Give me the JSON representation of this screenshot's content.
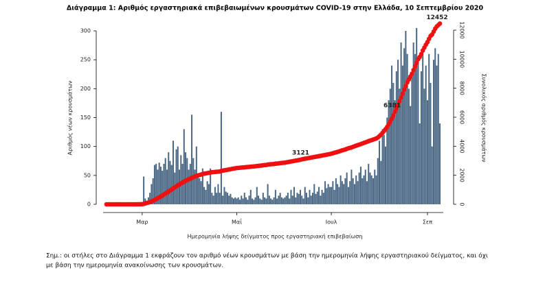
{
  "chart_data": {
    "type": "bar",
    "title": "Διάγραμμα 1: Αριθμός εργαστηριακά επιβεβαιωμένων κρουσμάτων COVID-19 στην Ελλάδα, 10 Σεπτεμβρίου 2020",
    "x_label": "Ημερομηνία λήψης δείγματος προς εργαστηριακή επιβεβαίωση",
    "y_label": "Αριθμός νέων κρουσμάτων",
    "y2_label": "Συνολικός αριθμός κρουσμάτων",
    "categories": [
      null,
      null,
      null,
      null,
      null,
      null,
      null,
      null,
      null,
      null,
      null,
      null,
      null,
      null,
      null,
      null,
      null,
      null,
      null,
      null,
      null,
      null,
      null,
      "Μαρ",
      null,
      null,
      null,
      null,
      null,
      null,
      null,
      null,
      null,
      null,
      null,
      null,
      null,
      null,
      null,
      null,
      null,
      null,
      null,
      null,
      null,
      null,
      null,
      null,
      null,
      null,
      null,
      null,
      null,
      null,
      null,
      null,
      null,
      null,
      null,
      null,
      null,
      null,
      null,
      null,
      null,
      null,
      null,
      null,
      null,
      null,
      null,
      null,
      null,
      null,
      null,
      null,
      null,
      null,
      null,
      null,
      null,
      null,
      null,
      null,
      "Μαΐ",
      null,
      null,
      null,
      null,
      null,
      null,
      null,
      null,
      null,
      null,
      null,
      null,
      null,
      null,
      null,
      null,
      null,
      null,
      null,
      null,
      null,
      null,
      null,
      null,
      null,
      null,
      null,
      null,
      null,
      null,
      null,
      null,
      null,
      null,
      null,
      null,
      null,
      null,
      null,
      null,
      null,
      null,
      null,
      null,
      null,
      null,
      null,
      null,
      null,
      null,
      null,
      null,
      null,
      null,
      null,
      null,
      null,
      null,
      null,
      null,
      "Ιουλ",
      null,
      null,
      null,
      null,
      null,
      null,
      null,
      null,
      null,
      null,
      null,
      null,
      null,
      null,
      null,
      null,
      null,
      null,
      null,
      null,
      null,
      null,
      null,
      null,
      null,
      null,
      null,
      null,
      null,
      null,
      null,
      null,
      null,
      null,
      null,
      null,
      null,
      null,
      null,
      null,
      null,
      null,
      null,
      null,
      null,
      null,
      null,
      null,
      null,
      null,
      null,
      null,
      null,
      null,
      null,
      null,
      null,
      null,
      null,
      null,
      null,
      "Σεπ",
      null,
      null,
      null,
      null,
      null,
      null,
      null,
      null
    ],
    "series": [
      {
        "name": "Αριθμός νέων κρουσμάτων",
        "type": "bar",
        "color": "#4b6985",
        "axis": "y",
        "values": [
          0,
          0,
          0,
          0,
          0,
          0,
          0,
          0,
          0,
          0,
          0,
          0,
          0,
          0,
          0,
          0,
          0,
          0,
          0,
          0,
          0,
          1,
          2,
          3,
          48,
          10,
          5,
          12,
          20,
          35,
          45,
          68,
          70,
          60,
          72,
          65,
          58,
          70,
          80,
          60,
          90,
          75,
          68,
          110,
          55,
          95,
          100,
          60,
          85,
          70,
          130,
          90,
          80,
          60,
          70,
          155,
          80,
          60,
          100,
          50,
          45,
          40,
          62,
          30,
          25,
          40,
          35,
          62,
          20,
          15,
          30,
          20,
          35,
          20,
          160,
          15,
          30,
          22,
          20,
          15,
          18,
          12,
          10,
          12,
          10,
          12,
          8,
          15,
          10,
          20,
          12,
          8,
          15,
          25,
          10,
          8,
          12,
          30,
          15,
          10,
          8,
          20,
          12,
          10,
          35,
          15,
          10,
          8,
          12,
          25,
          10,
          15,
          20,
          12,
          10,
          12,
          15,
          20,
          10,
          25,
          15,
          30,
          12,
          20,
          18,
          25,
          15,
          10,
          30,
          20,
          12,
          25,
          15,
          20,
          35,
          18,
          22,
          30,
          15,
          25,
          20,
          40,
          28,
          35,
          30,
          30,
          40,
          25,
          45,
          35,
          30,
          50,
          40,
          35,
          45,
          55,
          30,
          40,
          60,
          45,
          35,
          50,
          40,
          55,
          65,
          45,
          50,
          60,
          40,
          70,
          55,
          50,
          45,
          60,
          50,
          80,
          110,
          75,
          130,
          120,
          100,
          150,
          180,
          200,
          240,
          210,
          180,
          230,
          250,
          200,
          280,
          240,
          270,
          300,
          260,
          200,
          170,
          220,
          280,
          260,
          305,
          250,
          140,
          230,
          270,
          200,
          240,
          180,
          260,
          210,
          100,
          250,
          270,
          240,
          260,
          140
        ]
      },
      {
        "name": "Συνολικός αριθμός κρουσμάτων",
        "type": "line",
        "color": "#ee1111",
        "axis": "y2",
        "values": [
          0,
          0,
          0,
          0,
          0,
          0,
          0,
          0,
          0,
          0,
          0,
          0,
          0,
          0,
          0,
          0,
          0,
          0,
          0,
          0,
          1,
          2,
          4,
          10,
          30,
          60,
          90,
          120,
          160,
          200,
          250,
          300,
          360,
          420,
          480,
          540,
          600,
          670,
          740,
          810,
          880,
          950,
          1020,
          1090,
          1160,
          1230,
          1300,
          1370,
          1440,
          1500,
          1560,
          1620,
          1670,
          1720,
          1770,
          1820,
          1870,
          1910,
          1950,
          1990,
          2020,
          2050,
          2080,
          2110,
          2130,
          2150,
          2170,
          2190,
          2210,
          2220,
          2230,
          2240,
          2250,
          2260,
          2300,
          2320,
          2340,
          2360,
          2380,
          2400,
          2420,
          2440,
          2460,
          2480,
          2500,
          2510,
          2520,
          2530,
          2540,
          2550,
          2560,
          2570,
          2580,
          2590,
          2600,
          2610,
          2620,
          2640,
          2650,
          2660,
          2670,
          2690,
          2700,
          2710,
          2740,
          2750,
          2760,
          2770,
          2780,
          2800,
          2810,
          2820,
          2840,
          2850,
          2860,
          2870,
          2890,
          2910,
          2930,
          2950,
          2970,
          2990,
          3010,
          3030,
          3050,
          3070,
          3100,
          3121,
          3140,
          3160,
          3180,
          3200,
          3220,
          3240,
          3260,
          3280,
          3300,
          3320,
          3340,
          3360,
          3380,
          3400,
          3420,
          3440,
          3460,
          3490,
          3520,
          3550,
          3580,
          3610,
          3640,
          3680,
          3720,
          3750,
          3780,
          3820,
          3860,
          3890,
          3920,
          3960,
          4000,
          4040,
          4080,
          4110,
          4150,
          4190,
          4230,
          4270,
          4310,
          4350,
          4390,
          4420,
          4460,
          4500,
          4540,
          4600,
          4700,
          4800,
          4920,
          5050,
          5180,
          5330,
          5500,
          5700,
          5900,
          6120,
          6381,
          6600,
          6850,
          7100,
          7350,
          7620,
          7900,
          8150,
          8400,
          8600,
          8800,
          9000,
          9250,
          9500,
          9750,
          10000,
          10150,
          10350,
          10600,
          10800,
          11000,
          11180,
          11400,
          11600,
          11700,
          11900,
          12100,
          12250,
          12350,
          12452
        ],
        "value_labels": [
          null,
          null,
          null,
          null,
          null,
          null,
          null,
          null,
          null,
          null,
          null,
          null,
          null,
          null,
          null,
          null,
          null,
          null,
          null,
          null,
          null,
          null,
          null,
          null,
          null,
          null,
          null,
          null,
          null,
          null,
          null,
          null,
          null,
          null,
          null,
          null,
          null,
          null,
          null,
          null,
          null,
          null,
          null,
          null,
          null,
          null,
          null,
          null,
          null,
          null,
          null,
          null,
          null,
          null,
          null,
          null,
          null,
          null,
          null,
          null,
          null,
          null,
          null,
          null,
          null,
          null,
          null,
          null,
          null,
          null,
          null,
          null,
          null,
          null,
          null,
          null,
          null,
          null,
          null,
          null,
          null,
          null,
          null,
          null,
          null,
          null,
          null,
          null,
          null,
          null,
          null,
          null,
          null,
          null,
          null,
          null,
          null,
          null,
          null,
          null,
          null,
          null,
          null,
          null,
          null,
          null,
          null,
          null,
          null,
          null,
          null,
          null,
          null,
          null,
          null,
          null,
          null,
          null,
          null,
          null,
          null,
          null,
          null,
          null,
          null,
          null,
          null,
          "3121",
          null,
          null,
          null,
          null,
          null,
          null,
          null,
          null,
          null,
          null,
          null,
          null,
          null,
          null,
          null,
          null,
          null,
          null,
          null,
          null,
          null,
          null,
          null,
          null,
          null,
          null,
          null,
          null,
          null,
          null,
          null,
          null,
          null,
          null,
          null,
          null,
          null,
          null,
          null,
          null,
          null,
          null,
          null,
          null,
          null,
          null,
          null,
          null,
          null,
          null,
          null,
          null,
          null,
          null,
          null,
          null,
          null,
          null,
          "6381",
          null,
          null,
          null,
          null,
          null,
          null,
          null,
          null,
          null,
          null,
          null,
          null,
          null,
          null,
          null,
          null,
          null,
          null,
          null,
          null,
          null,
          null,
          null,
          null,
          null,
          null,
          null,
          null,
          "12452"
        ]
      }
    ],
    "ylim": [
      0,
      300
    ],
    "yticks": [
      0,
      50,
      100,
      150,
      200,
      250,
      300
    ],
    "y2lim": [
      0,
      12000
    ],
    "y2ticks": [
      0,
      2000,
      4000,
      6000,
      8000,
      10000,
      12000
    ]
  },
  "note": [
    "Σημ.: οι στήλες στο Διάγραμμα 1 εκφράζουν τον αριθμό νέων κρουσμάτων με βάση την ημερομηνία λήψης εργαστηριακού δείγματος, και όχι",
    "με βάση την ημερομηνία ανακοίνωσης των κρουσμάτων."
  ]
}
